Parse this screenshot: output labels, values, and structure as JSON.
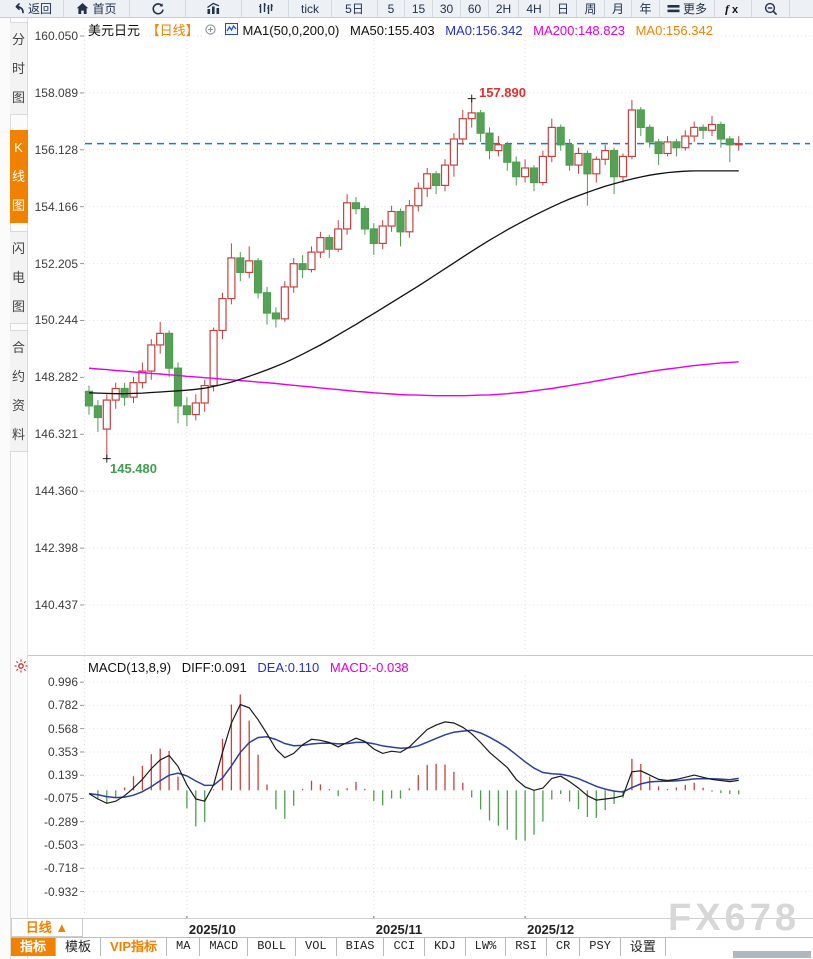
{
  "toolbar": {
    "items": [
      {
        "id": "back",
        "icon": "back-icon",
        "label": "返回"
      },
      {
        "id": "home",
        "icon": "home-icon",
        "label": "首页"
      },
      {
        "id": "refresh",
        "icon": "refresh-icon",
        "label": ""
      },
      {
        "id": "chart-style",
        "icon": "bar-chart-icon",
        "label": ""
      },
      {
        "id": "tick-chart",
        "icon": "tick-bars-icon",
        "label": ""
      },
      {
        "id": "tick",
        "icon": "",
        "label": "tick"
      },
      {
        "id": "5day",
        "icon": "",
        "label": "5日"
      },
      {
        "id": "5min",
        "icon": "",
        "label": "5"
      },
      {
        "id": "15min",
        "icon": "",
        "label": "15"
      },
      {
        "id": "30min",
        "icon": "",
        "label": "30"
      },
      {
        "id": "60min",
        "icon": "",
        "label": "60"
      },
      {
        "id": "2h",
        "icon": "",
        "label": "2H"
      },
      {
        "id": "4h",
        "icon": "",
        "label": "4H"
      },
      {
        "id": "day",
        "icon": "",
        "label": "日"
      },
      {
        "id": "week",
        "icon": "",
        "label": "周"
      },
      {
        "id": "month",
        "icon": "",
        "label": "月"
      },
      {
        "id": "year",
        "icon": "",
        "label": "年"
      },
      {
        "id": "more",
        "icon": "menu-icon",
        "label": "更多"
      },
      {
        "id": "fx",
        "icon": "fx-icon",
        "label": ""
      },
      {
        "id": "zoom-out",
        "icon": "zoom-out-icon",
        "label": ""
      }
    ]
  },
  "sidebar": {
    "tabs": [
      {
        "id": "minute-chart",
        "label": "分时图",
        "active": false
      },
      {
        "id": "kline-chart",
        "label": "K线图",
        "active": true
      },
      {
        "id": "lightning-chart",
        "label": "闪电图",
        "active": false
      },
      {
        "id": "contract-info",
        "label": "合约资料",
        "active": false
      }
    ]
  },
  "chart_header": {
    "symbol": "美元日元",
    "period_tag": "【日线】",
    "ma_settings": "MA1(50,0,200,0)",
    "ma50": "MA50:155.403",
    "ma0_blue": "MA0:156.342",
    "ma200": "MA200:148.823",
    "ma0_orange": "MA0:156.342"
  },
  "macd_header": {
    "title": "MACD(13,8,9)",
    "diff": "DIFF:0.091",
    "dea": "DEA:0.110",
    "macd": "MACD:-0.038"
  },
  "annotations": {
    "high": "157.890",
    "low": "145.480"
  },
  "period_button": "日线 ▲",
  "watermark": "FX678",
  "bottom_tabs": [
    {
      "label": "指标",
      "variant": "active",
      "zh": true
    },
    {
      "label": "模板",
      "variant": "normal",
      "zh": true
    },
    {
      "label": "VIP指标",
      "variant": "vip",
      "zh": true
    },
    {
      "label": "MA",
      "variant": "normal",
      "zh": false
    },
    {
      "label": "MACD",
      "variant": "normal",
      "zh": false
    },
    {
      "label": "BOLL",
      "variant": "normal",
      "zh": false
    },
    {
      "label": "VOL",
      "variant": "normal",
      "zh": false
    },
    {
      "label": "BIAS",
      "variant": "normal",
      "zh": false
    },
    {
      "label": "CCI",
      "variant": "normal",
      "zh": false
    },
    {
      "label": "KDJ",
      "variant": "normal",
      "zh": false
    },
    {
      "label": "LW%",
      "variant": "normal",
      "zh": false
    },
    {
      "label": "RSI",
      "variant": "normal",
      "zh": false
    },
    {
      "label": "CR",
      "variant": "normal",
      "zh": false
    },
    {
      "label": "PSY",
      "variant": "normal",
      "zh": false
    },
    {
      "label": "设置",
      "variant": "normal",
      "zh": true
    }
  ],
  "colors": {
    "up": "#c9403e",
    "down": "#4f9e50",
    "ma50": "#111111",
    "ma200": "#e800e8",
    "diff_line": "#1a1a1a",
    "dea_line": "#2b3f9e",
    "current_price_line": "#1778e8",
    "accent_orange": "#f08200",
    "grid": "#e3e3e3",
    "annotation_high": "#e03030",
    "annotation_low": "#3f9e4f"
  },
  "chart_data": {
    "type": "candlestick+macd",
    "title": "美元日元 日线 (USD/JPY daily with MA50/MA200 and MACD(13,8,9))",
    "price_axis_labels": [
      "160.050",
      "158.089",
      "156.128",
      "154.166",
      "152.205",
      "150.244",
      "148.282",
      "146.321",
      "144.360",
      "142.398",
      "140.437"
    ],
    "macd_axis_labels": [
      "0.996",
      "0.782",
      "0.568",
      "0.353",
      "0.139",
      "-0.075",
      "-0.289",
      "-0.503",
      "-0.718",
      "-0.932"
    ],
    "x_labels": [
      {
        "label": "2025/10",
        "index": 11
      },
      {
        "label": "2025/11",
        "index": 32
      },
      {
        "label": "2025/12",
        "index": 49
      }
    ],
    "current_price": 156.342,
    "high_annotation": {
      "value": 157.89,
      "index": 43
    },
    "low_annotation": {
      "value": 145.48,
      "index": 2
    },
    "candles": [
      [
        147.8,
        148.0,
        147.0,
        147.3
      ],
      [
        147.3,
        147.5,
        146.4,
        146.9
      ],
      [
        146.5,
        147.7,
        145.48,
        147.5
      ],
      [
        147.5,
        148.1,
        147.2,
        147.9
      ],
      [
        147.9,
        148.1,
        147.3,
        147.6
      ],
      [
        147.6,
        148.3,
        147.4,
        148.1
      ],
      [
        148.1,
        148.8,
        147.9,
        148.5
      ],
      [
        148.5,
        149.6,
        148.2,
        149.4
      ],
      [
        149.4,
        150.2,
        149.1,
        149.8
      ],
      [
        149.8,
        149.9,
        148.3,
        148.6
      ],
      [
        148.6,
        148.8,
        146.7,
        147.3
      ],
      [
        147.3,
        147.6,
        146.6,
        147.0
      ],
      [
        147.0,
        147.7,
        146.8,
        147.4
      ],
      [
        147.4,
        148.2,
        147.1,
        148.0
      ],
      [
        148.0,
        150.0,
        147.8,
        149.9
      ],
      [
        149.9,
        151.2,
        149.6,
        151.0
      ],
      [
        151.0,
        152.9,
        150.8,
        152.4
      ],
      [
        152.4,
        152.6,
        151.6,
        151.9
      ],
      [
        151.9,
        152.8,
        151.7,
        152.3
      ],
      [
        152.3,
        152.4,
        151.0,
        151.2
      ],
      [
        151.2,
        151.4,
        150.1,
        150.5
      ],
      [
        150.5,
        150.7,
        150.0,
        150.3
      ],
      [
        150.3,
        151.6,
        150.2,
        151.4
      ],
      [
        151.4,
        152.4,
        151.2,
        152.2
      ],
      [
        152.2,
        152.5,
        151.7,
        152.0
      ],
      [
        152.0,
        152.8,
        151.9,
        152.6
      ],
      [
        152.6,
        153.3,
        152.4,
        153.1
      ],
      [
        153.1,
        153.2,
        152.4,
        152.7
      ],
      [
        152.7,
        153.7,
        152.6,
        153.4
      ],
      [
        153.4,
        154.6,
        153.2,
        154.3
      ],
      [
        154.3,
        154.5,
        153.9,
        154.1
      ],
      [
        154.1,
        154.2,
        153.2,
        153.4
      ],
      [
        153.4,
        153.6,
        152.5,
        152.9
      ],
      [
        152.9,
        153.7,
        152.7,
        153.5
      ],
      [
        153.5,
        154.2,
        153.3,
        154.0
      ],
      [
        154.0,
        154.1,
        152.8,
        153.3
      ],
      [
        153.3,
        154.4,
        153.1,
        154.2
      ],
      [
        154.2,
        155.0,
        154.0,
        154.8
      ],
      [
        154.8,
        155.5,
        154.5,
        155.3
      ],
      [
        155.3,
        155.4,
        154.6,
        154.9
      ],
      [
        154.9,
        155.8,
        154.7,
        155.6
      ],
      [
        155.6,
        156.7,
        155.2,
        156.5
      ],
      [
        156.5,
        157.5,
        156.3,
        157.2
      ],
      [
        157.2,
        157.89,
        156.9,
        157.4
      ],
      [
        157.4,
        157.5,
        156.4,
        156.7
      ],
      [
        156.7,
        156.9,
        155.8,
        156.1
      ],
      [
        156.1,
        156.6,
        155.9,
        156.3
      ],
      [
        156.3,
        156.4,
        155.4,
        155.7
      ],
      [
        155.7,
        155.9,
        154.9,
        155.2
      ],
      [
        155.2,
        155.8,
        155.0,
        155.5
      ],
      [
        155.5,
        155.6,
        154.7,
        155.0
      ],
      [
        155.0,
        156.1,
        154.9,
        155.9
      ],
      [
        155.9,
        157.2,
        155.7,
        156.9
      ],
      [
        156.9,
        157.0,
        156.1,
        156.3
      ],
      [
        156.3,
        156.5,
        155.4,
        155.6
      ],
      [
        155.6,
        156.2,
        155.3,
        156.0
      ],
      [
        156.0,
        156.1,
        154.2,
        155.3
      ],
      [
        155.3,
        155.9,
        155.0,
        155.8
      ],
      [
        155.8,
        156.3,
        155.6,
        156.1
      ],
      [
        156.1,
        156.2,
        154.6,
        155.2
      ],
      [
        155.2,
        156.0,
        155.0,
        155.9
      ],
      [
        155.9,
        157.85,
        155.8,
        157.5
      ],
      [
        157.5,
        157.6,
        156.6,
        156.9
      ],
      [
        156.9,
        157.0,
        156.2,
        156.4
      ],
      [
        156.4,
        156.5,
        155.6,
        156.0
      ],
      [
        156.0,
        156.6,
        155.9,
        156.4
      ],
      [
        156.4,
        156.5,
        155.9,
        156.2
      ],
      [
        156.2,
        156.8,
        156.1,
        156.6
      ],
      [
        156.6,
        157.1,
        156.4,
        156.9
      ],
      [
        156.9,
        157.0,
        156.5,
        156.8
      ],
      [
        156.8,
        157.3,
        156.6,
        157.0
      ],
      [
        157.0,
        157.1,
        156.2,
        156.5
      ],
      [
        156.5,
        156.6,
        155.7,
        156.3
      ],
      [
        156.3,
        156.6,
        156.1,
        156.34
      ]
    ],
    "ma50": [
      147.75,
      147.74,
      147.73,
      147.72,
      147.72,
      147.73,
      147.74,
      147.76,
      147.78,
      147.8,
      147.82,
      147.84,
      147.87,
      147.91,
      147.97,
      148.04,
      148.12,
      148.22,
      148.32,
      148.43,
      148.54,
      148.66,
      148.79,
      148.93,
      149.08,
      149.24,
      149.4,
      149.57,
      149.75,
      149.93,
      150.11,
      150.3,
      150.48,
      150.67,
      150.86,
      151.05,
      151.24,
      151.43,
      151.63,
      151.83,
      152.03,
      152.23,
      152.43,
      152.63,
      152.82,
      153.01,
      153.19,
      153.37,
      153.54,
      153.7,
      153.86,
      154.01,
      154.16,
      154.3,
      154.43,
      154.55,
      154.66,
      154.77,
      154.87,
      154.96,
      155.04,
      155.12,
      155.19,
      155.25,
      155.3,
      155.34,
      155.37,
      155.39,
      155.4,
      155.4,
      155.4,
      155.4,
      155.4,
      155.4
    ],
    "ma200": [
      148.6,
      148.57,
      148.55,
      148.52,
      148.5,
      148.47,
      148.45,
      148.42,
      148.4,
      148.37,
      148.35,
      148.32,
      148.3,
      148.27,
      148.25,
      148.22,
      148.2,
      148.17,
      148.15,
      148.12,
      148.1,
      148.07,
      148.04,
      148.01,
      147.98,
      147.95,
      147.92,
      147.89,
      147.86,
      147.83,
      147.8,
      147.78,
      147.75,
      147.73,
      147.71,
      147.69,
      147.68,
      147.67,
      147.66,
      147.65,
      147.65,
      147.65,
      147.65,
      147.66,
      147.67,
      147.68,
      147.7,
      147.72,
      147.75,
      147.78,
      147.82,
      147.86,
      147.9,
      147.95,
      148.0,
      148.05,
      148.1,
      148.16,
      148.21,
      148.27,
      148.32,
      148.38,
      148.43,
      148.48,
      148.53,
      148.57,
      148.61,
      148.65,
      148.69,
      148.72,
      148.75,
      148.78,
      148.8,
      148.82
    ],
    "macd_diff": [
      -0.03,
      -0.08,
      -0.12,
      -0.1,
      -0.05,
      0.02,
      0.1,
      0.2,
      0.28,
      0.32,
      0.22,
      0.05,
      -0.08,
      -0.1,
      0.05,
      0.35,
      0.62,
      0.79,
      0.76,
      0.65,
      0.52,
      0.38,
      0.3,
      0.34,
      0.42,
      0.47,
      0.46,
      0.44,
      0.4,
      0.44,
      0.48,
      0.45,
      0.38,
      0.34,
      0.36,
      0.35,
      0.4,
      0.48,
      0.56,
      0.6,
      0.63,
      0.62,
      0.58,
      0.52,
      0.44,
      0.35,
      0.28,
      0.21,
      0.1,
      0.03,
      0.0,
      0.02,
      0.11,
      0.13,
      0.08,
      0.02,
      -0.05,
      -0.09,
      -0.08,
      -0.07,
      -0.05,
      0.17,
      0.18,
      0.14,
      0.1,
      0.09,
      0.1,
      0.12,
      0.14,
      0.12,
      0.1,
      0.09,
      0.08,
      0.091
    ],
    "macd_dea": [
      -0.03,
      -0.041,
      -0.058,
      -0.067,
      -0.063,
      -0.045,
      -0.013,
      0.034,
      0.088,
      0.139,
      0.157,
      0.133,
      0.086,
      0.045,
      0.046,
      0.113,
      0.225,
      0.349,
      0.439,
      0.486,
      0.493,
      0.468,
      0.431,
      0.411,
      0.413,
      0.426,
      0.433,
      0.435,
      0.427,
      0.43,
      0.441,
      0.443,
      0.429,
      0.409,
      0.398,
      0.388,
      0.391,
      0.41,
      0.443,
      0.478,
      0.511,
      0.535,
      0.545,
      0.553,
      0.528,
      0.489,
      0.443,
      0.392,
      0.328,
      0.262,
      0.204,
      0.164,
      0.152,
      0.147,
      0.132,
      0.107,
      0.073,
      0.037,
      0.011,
      -0.007,
      -0.016,
      0.025,
      0.059,
      0.077,
      0.082,
      0.084,
      0.087,
      0.095,
      0.105,
      0.108,
      0.106,
      0.103,
      0.098,
      0.11
    ]
  }
}
